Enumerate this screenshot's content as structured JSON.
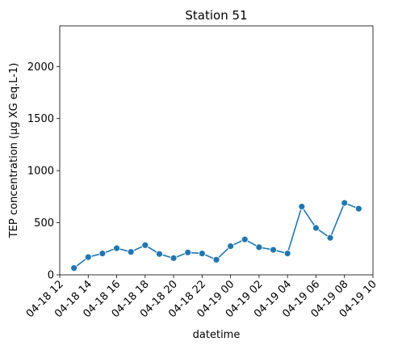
{
  "chart_data": {
    "type": "line",
    "title": "Station 51",
    "xlabel": "datetime",
    "ylabel": "TEP concentration (µg XG eq.L-1)",
    "x_tick_labels": [
      "04-18 12",
      "04-18 14",
      "04-18 16",
      "04-18 18",
      "04-18 20",
      "04-18 22",
      "04-19 00",
      "04-19 02",
      "04-19 04",
      "04-19 06",
      "04-19 08",
      "04-19 10"
    ],
    "y_ticks": [
      0,
      500,
      1000,
      1500,
      2000
    ],
    "xlim": [
      "2000-04-18T12:00",
      "2000-04-19T10:00"
    ],
    "ylim": [
      0,
      2390
    ],
    "grid": false,
    "color": "#1f77b4",
    "series": [
      {
        "x": [
          "04-18 13:00",
          "04-18 14:00",
          "04-18 15:00",
          "04-18 16:00",
          "04-18 17:00",
          "04-18 18:00",
          "04-18 19:00",
          "04-18 20:00",
          "04-18 21:00",
          "04-18 22:00",
          "04-18 23:00",
          "04-19 00:00",
          "04-19 01:00",
          "04-19 02:00",
          "04-19 03:00",
          "04-19 04:00",
          "04-19 05:00",
          "04-19 06:00",
          "04-19 07:00",
          "04-19 08:00",
          "04-19 09:00"
        ],
        "values": [
          65,
          170,
          205,
          255,
          220,
          285,
          200,
          160,
          215,
          205,
          145,
          275,
          340,
          265,
          240,
          205,
          655,
          450,
          355,
          690,
          635
        ]
      }
    ]
  }
}
